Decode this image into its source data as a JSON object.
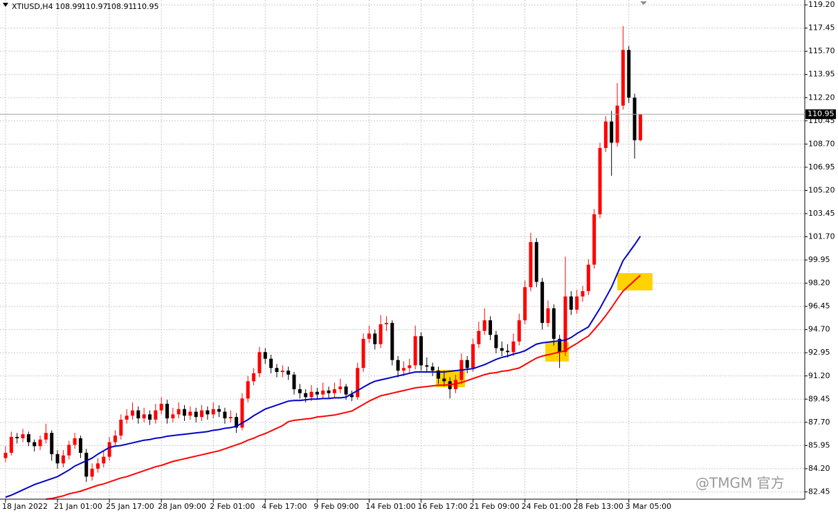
{
  "chart_data": {
    "type": "candlestick",
    "symbol": "XTIUSD,H4",
    "watermark": "@TMGM 官方",
    "up_color": "#ff0000",
    "down_color": "#000000",
    "grid": true,
    "ylim": [
      81.9,
      119.57
    ],
    "yticks": [
      {
        "value": 119.2,
        "label": "119.20"
      },
      {
        "value": 117.45,
        "label": "117.45"
      },
      {
        "value": 115.7,
        "label": "115.70"
      },
      {
        "value": 113.95,
        "label": "113.95"
      },
      {
        "value": 112.2,
        "label": "112.20"
      },
      {
        "value": 110.45,
        "label": "110.45"
      },
      {
        "value": 108.7,
        "label": "108.70"
      },
      {
        "value": 106.95,
        "label": "106.95"
      },
      {
        "value": 105.2,
        "label": "105.20"
      },
      {
        "value": 103.45,
        "label": "103.45"
      },
      {
        "value": 101.7,
        "label": "101.70"
      },
      {
        "value": 99.95,
        "label": "99.95"
      },
      {
        "value": 98.2,
        "label": "98.20"
      },
      {
        "value": 96.45,
        "label": "96.45"
      },
      {
        "value": 94.7,
        "label": "94.70"
      },
      {
        "value": 92.95,
        "label": "92.95"
      },
      {
        "value": 91.2,
        "label": "91.20"
      },
      {
        "value": 89.45,
        "label": "89.45"
      },
      {
        "value": 87.7,
        "label": "87.70"
      },
      {
        "value": 85.95,
        "label": "85.95"
      },
      {
        "value": 84.2,
        "label": "84.20"
      },
      {
        "value": 82.45,
        "label": "82.45"
      }
    ],
    "xticks": [
      {
        "value": 0,
        "label": "18 Jan 2022"
      },
      {
        "value": 9,
        "label": "21 Jan 01:00"
      },
      {
        "value": 18,
        "label": "25 Jan 17:00"
      },
      {
        "value": 27,
        "label": "28 Jan 09:00"
      },
      {
        "value": 36,
        "label": "2 Feb 01:00"
      },
      {
        "value": 45,
        "label": "4 Feb 17:00"
      },
      {
        "value": 54,
        "label": "9 Feb 09:00"
      },
      {
        "value": 63,
        "label": "14 Feb 01:00"
      },
      {
        "value": 72,
        "label": "16 Feb 17:00"
      },
      {
        "value": 81,
        "label": "21 Feb 09:00"
      },
      {
        "value": 90,
        "label": "24 Feb 01:00"
      },
      {
        "value": 99,
        "label": "28 Feb 13:00"
      },
      {
        "value": 108,
        "label": "3 Mar 05:00"
      }
    ],
    "ohlc": [
      [
        85.0,
        85.9,
        84.7,
        85.4
      ],
      [
        85.4,
        87.0,
        85.2,
        86.6
      ],
      [
        86.6,
        86.9,
        86.1,
        86.5
      ],
      [
        86.5,
        87.2,
        86.2,
        86.8
      ],
      [
        86.8,
        87.0,
        85.9,
        86.2
      ],
      [
        86.2,
        86.4,
        85.5,
        85.9
      ],
      [
        85.9,
        86.7,
        85.6,
        86.4
      ],
      [
        86.4,
        87.6,
        86.1,
        86.9
      ],
      [
        86.9,
        87.1,
        84.8,
        85.3
      ],
      [
        85.3,
        85.6,
        84.2,
        84.6
      ],
      [
        84.6,
        85.6,
        84.3,
        85.2
      ],
      [
        85.2,
        86.3,
        84.9,
        86.0
      ],
      [
        86.0,
        86.9,
        85.7,
        86.5
      ],
      [
        86.5,
        86.7,
        85.0,
        85.4
      ],
      [
        85.4,
        85.7,
        83.2,
        83.6
      ],
      [
        83.6,
        84.6,
        83.3,
        84.2
      ],
      [
        84.2,
        85.0,
        83.9,
        84.6
      ],
      [
        84.6,
        85.5,
        84.3,
        85.1
      ],
      [
        85.1,
        86.6,
        84.8,
        86.2
      ],
      [
        86.2,
        87.1,
        85.9,
        86.7
      ],
      [
        86.7,
        88.3,
        86.4,
        87.9
      ],
      [
        87.9,
        88.7,
        87.6,
        88.2
      ],
      [
        88.2,
        89.2,
        87.9,
        88.6
      ],
      [
        88.6,
        88.9,
        87.6,
        88.0
      ],
      [
        88.0,
        88.8,
        87.7,
        88.3
      ],
      [
        88.3,
        88.6,
        87.5,
        87.9
      ],
      [
        87.9,
        89.1,
        87.6,
        88.6
      ],
      [
        88.6,
        89.6,
        88.3,
        89.1
      ],
      [
        89.1,
        89.4,
        87.6,
        88.0
      ],
      [
        88.0,
        88.8,
        87.7,
        88.3
      ],
      [
        88.3,
        89.2,
        88.0,
        88.7
      ],
      [
        88.7,
        89.0,
        87.8,
        88.2
      ],
      [
        88.2,
        88.9,
        87.9,
        88.5
      ],
      [
        88.5,
        88.8,
        87.7,
        88.1
      ],
      [
        88.1,
        89.0,
        87.8,
        88.6
      ],
      [
        88.6,
        88.9,
        87.9,
        88.3
      ],
      [
        88.3,
        89.2,
        88.0,
        88.7
      ],
      [
        88.7,
        89.0,
        88.1,
        88.5
      ],
      [
        88.5,
        88.8,
        87.6,
        88.0
      ],
      [
        88.0,
        88.6,
        87.7,
        88.1
      ],
      [
        88.1,
        88.4,
        86.9,
        87.3
      ],
      [
        87.3,
        89.9,
        87.1,
        89.5
      ],
      [
        89.5,
        91.2,
        89.2,
        90.8
      ],
      [
        90.8,
        91.8,
        90.5,
        91.4
      ],
      [
        91.4,
        93.4,
        91.1,
        93.0
      ],
      [
        93.0,
        93.3,
        92.1,
        92.5
      ],
      [
        92.5,
        92.8,
        91.4,
        91.8
      ],
      [
        91.8,
        92.1,
        91.1,
        91.5
      ],
      [
        91.5,
        92.0,
        91.1,
        91.6
      ],
      [
        91.6,
        91.9,
        90.9,
        91.3
      ],
      [
        91.3,
        91.5,
        89.8,
        90.2
      ],
      [
        90.2,
        90.6,
        89.5,
        89.9
      ],
      [
        89.9,
        90.2,
        89.2,
        89.6
      ],
      [
        89.6,
        90.5,
        89.3,
        90.0
      ],
      [
        90.0,
        90.3,
        89.4,
        89.8
      ],
      [
        89.8,
        90.7,
        89.5,
        90.1
      ],
      [
        90.1,
        90.4,
        89.5,
        89.9
      ],
      [
        89.9,
        90.7,
        89.6,
        90.2
      ],
      [
        90.2,
        91.0,
        89.9,
        90.4
      ],
      [
        90.4,
        90.6,
        89.4,
        89.8
      ],
      [
        89.8,
        90.1,
        89.3,
        89.6
      ],
      [
        89.6,
        92.2,
        89.4,
        91.8
      ],
      [
        91.8,
        94.4,
        91.5,
        94.0
      ],
      [
        94.0,
        95.0,
        93.7,
        94.4
      ],
      [
        94.4,
        94.7,
        93.2,
        93.6
      ],
      [
        93.6,
        95.8,
        93.3,
        95.1
      ],
      [
        95.1,
        95.7,
        94.6,
        95.2
      ],
      [
        95.2,
        95.4,
        92.0,
        92.4
      ],
      [
        92.4,
        92.7,
        91.1,
        91.6
      ],
      [
        91.6,
        92.3,
        91.2,
        91.8
      ],
      [
        91.8,
        92.5,
        91.4,
        92.0
      ],
      [
        92.0,
        95.0,
        91.7,
        94.2
      ],
      [
        94.2,
        94.5,
        91.6,
        92.0
      ],
      [
        92.0,
        92.6,
        91.5,
        91.9
      ],
      [
        91.9,
        92.2,
        91.2,
        91.6
      ],
      [
        91.6,
        91.9,
        90.6,
        91.0
      ],
      [
        91.0,
        91.6,
        90.4,
        90.8
      ],
      [
        90.8,
        91.1,
        89.5,
        90.2
      ],
      [
        90.2,
        91.3,
        89.9,
        90.9
      ],
      [
        90.9,
        92.9,
        90.6,
        92.4
      ],
      [
        92.4,
        92.7,
        91.4,
        91.8
      ],
      [
        91.8,
        94.0,
        91.5,
        93.6
      ],
      [
        93.6,
        95.3,
        93.3,
        94.6
      ],
      [
        94.6,
        96.3,
        94.3,
        95.4
      ],
      [
        95.4,
        95.7,
        93.9,
        94.3
      ],
      [
        94.3,
        94.6,
        92.9,
        93.3
      ],
      [
        93.3,
        93.8,
        92.7,
        93.1
      ],
      [
        93.1,
        93.6,
        92.6,
        93.0
      ],
      [
        93.0,
        94.4,
        92.7,
        93.8
      ],
      [
        93.8,
        95.9,
        93.5,
        95.4
      ],
      [
        95.4,
        98.4,
        95.1,
        97.9
      ],
      [
        97.9,
        102.0,
        97.6,
        101.3
      ],
      [
        101.3,
        101.6,
        97.9,
        98.3
      ],
      [
        98.3,
        98.6,
        94.7,
        95.2
      ],
      [
        95.2,
        96.9,
        94.9,
        96.3
      ],
      [
        96.3,
        96.6,
        93.5,
        94.0
      ],
      [
        94.0,
        94.3,
        91.8,
        93.0
      ],
      [
        93.0,
        100.2,
        92.7,
        97.2
      ],
      [
        97.2,
        97.6,
        95.8,
        96.2
      ],
      [
        96.2,
        97.7,
        95.9,
        97.2
      ],
      [
        97.2,
        98.0,
        96.8,
        97.6
      ],
      [
        97.6,
        100.0,
        97.3,
        99.6
      ],
      [
        99.6,
        103.8,
        99.3,
        103.4
      ],
      [
        103.4,
        108.8,
        103.1,
        108.4
      ],
      [
        108.4,
        110.8,
        108.1,
        110.4
      ],
      [
        110.4,
        111.2,
        106.3,
        108.8
      ],
      [
        108.8,
        113.3,
        108.5,
        111.6
      ],
      [
        111.6,
        117.6,
        111.3,
        115.8
      ],
      [
        115.8,
        116.1,
        111.8,
        112.2
      ],
      [
        112.2,
        112.5,
        107.6,
        108.99
      ],
      [
        108.99,
        110.97,
        108.91,
        110.95
      ]
    ],
    "ma_series": [
      {
        "color": "#0000c8",
        "values": [
          82.05,
          82.2,
          82.4,
          82.6,
          82.8,
          83.0,
          83.15,
          83.3,
          83.45,
          83.6,
          83.85,
          84.1,
          84.4,
          84.6,
          84.8,
          85.0,
          85.3,
          85.55,
          85.8,
          85.9,
          85.95,
          86.05,
          86.15,
          86.25,
          86.35,
          86.4,
          86.5,
          86.55,
          86.65,
          86.7,
          86.75,
          86.8,
          86.85,
          86.9,
          86.95,
          87.0,
          87.1,
          87.15,
          87.25,
          87.3,
          87.4,
          87.65,
          87.9,
          88.2,
          88.45,
          88.7,
          88.85,
          89.0,
          89.15,
          89.3,
          89.35,
          89.35,
          89.4,
          89.45,
          89.45,
          89.5,
          89.5,
          89.55,
          89.55,
          89.6,
          89.85,
          90.1,
          90.35,
          90.6,
          90.8,
          90.9,
          91.0,
          91.1,
          91.2,
          91.3,
          91.4,
          91.5,
          91.5,
          91.5,
          91.5,
          91.5,
          91.5,
          91.55,
          91.6,
          91.65,
          91.7,
          91.75,
          91.9,
          92.05,
          92.25,
          92.45,
          92.6,
          92.7,
          92.85,
          92.95,
          93.1,
          93.35,
          93.6,
          93.7,
          93.75,
          93.8,
          93.85,
          93.9,
          94.1,
          94.4,
          94.65,
          94.9,
          95.6,
          96.3,
          97.1,
          97.9,
          98.9,
          99.9,
          100.5,
          101.1,
          101.75
        ]
      },
      {
        "color": "#ff0000",
        "values": [
          null,
          null,
          null,
          null,
          null,
          null,
          null,
          81.9,
          81.95,
          82.05,
          82.15,
          82.3,
          82.4,
          82.5,
          82.65,
          82.8,
          82.95,
          83.05,
          83.2,
          83.35,
          83.5,
          83.6,
          83.75,
          83.9,
          84.05,
          84.2,
          84.35,
          84.45,
          84.6,
          84.75,
          84.85,
          84.95,
          85.05,
          85.15,
          85.25,
          85.35,
          85.45,
          85.55,
          85.7,
          85.85,
          86.0,
          86.15,
          86.35,
          86.5,
          86.7,
          86.85,
          87.05,
          87.25,
          87.45,
          87.75,
          87.85,
          87.9,
          87.95,
          88.0,
          88.1,
          88.15,
          88.2,
          88.25,
          88.35,
          88.45,
          88.55,
          88.8,
          89.05,
          89.3,
          89.5,
          89.7,
          89.8,
          89.9,
          90.0,
          90.1,
          90.2,
          90.3,
          90.35,
          90.4,
          90.45,
          90.5,
          90.5,
          90.55,
          90.6,
          90.7,
          90.85,
          91.0,
          91.15,
          91.3,
          91.4,
          91.45,
          91.55,
          91.6,
          91.7,
          91.8,
          92.05,
          92.3,
          92.55,
          92.7,
          92.8,
          92.9,
          93.0,
          93.1,
          93.4,
          93.65,
          93.95,
          94.2,
          94.7,
          95.2,
          95.75,
          96.35,
          97.0,
          97.6,
          98.0,
          98.4,
          98.8
        ]
      }
    ]
  }
}
